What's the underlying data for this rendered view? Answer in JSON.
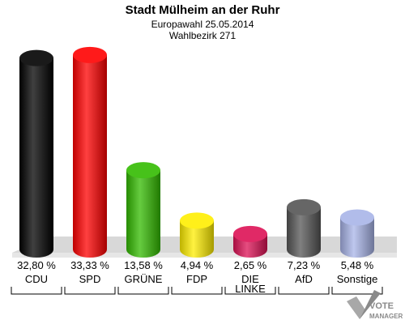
{
  "chart_data": {
    "type": "bar",
    "title": "Stadt Mülheim an der Ruhr",
    "subtitle_lines": [
      "Europawahl 25.05.2014",
      "Wahlbezirk 271"
    ],
    "categories": [
      "CDU",
      "SPD",
      "GRÜNE",
      "FDP",
      "DIE LINKE",
      "AfD",
      "Sonstige"
    ],
    "category_lines": [
      [
        "CDU"
      ],
      [
        "SPD"
      ],
      [
        "GRÜNE"
      ],
      [
        "FDP"
      ],
      [
        "DIE",
        "LINKE"
      ],
      [
        "AfD"
      ],
      [
        "Sonstige"
      ]
    ],
    "values": [
      32.8,
      33.33,
      13.58,
      4.94,
      2.65,
      7.23,
      5.48
    ],
    "value_labels": [
      "32,80 %",
      "33,33 %",
      "13,58 %",
      "4,94 %",
      "2,65 %",
      "7,23 %",
      "5,48 %"
    ],
    "colors": [
      "#000000",
      "#ff0000",
      "#33bb00",
      "#ffee00",
      "#dd1155",
      "#555555",
      "#a8b4e8"
    ],
    "ylim": [
      0,
      34
    ],
    "grid": false,
    "legend": "none"
  },
  "logo": {
    "line1": "VOTE",
    "line2": "MANAGER"
  }
}
